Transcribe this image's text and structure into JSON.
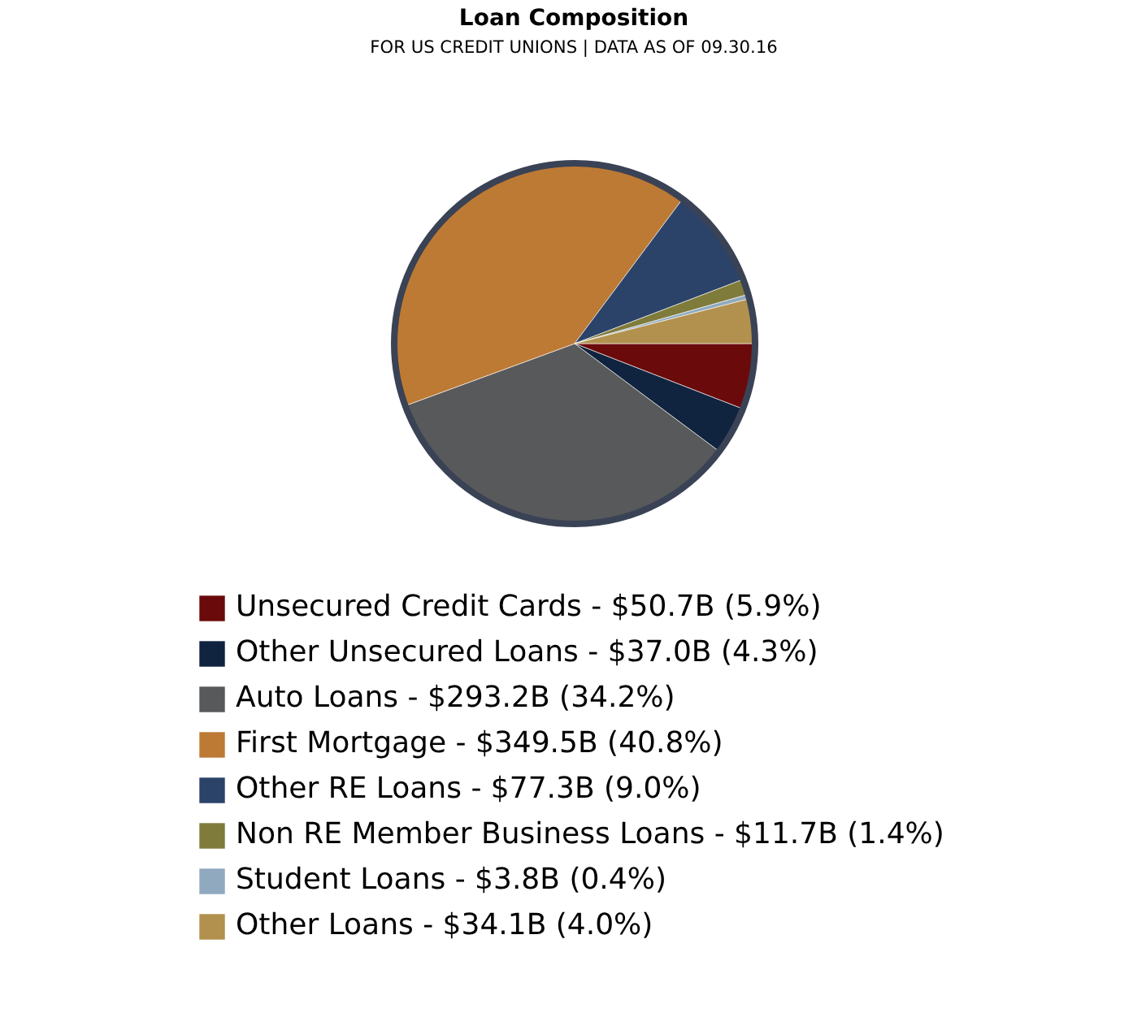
{
  "chart_data": {
    "type": "pie",
    "title": "Loan Composition",
    "subtitle": "FOR US CREDIT UNIONS | DATA AS OF 09.30.16",
    "categories": [
      "Unsecured Credit Cards",
      "Other Unsecured Loans",
      "Auto Loans",
      "First Mortgage",
      "Other RE Loans",
      "Non RE Member Business Loans",
      "Student Loans",
      "Other Loans"
    ],
    "values": [
      5.9,
      4.3,
      34.2,
      40.8,
      9.0,
      1.4,
      0.4,
      4.0
    ],
    "value_labels": [
      "$50.7B (5.9%)",
      "$37.0B (4.3%)",
      "$293.2B (34.2%)",
      "$349.5B (40.8%)",
      "$77.3B (9.0%)",
      "$11.7B (1.4%)",
      "$3.8B (0.4%)",
      "$34.1B (4.0%)"
    ],
    "colors": [
      "#6b0a0b",
      "#10233f",
      "#58595b",
      "#bd7a35",
      "#2b4368",
      "#7f7b3b",
      "#91a9bf",
      "#b2914e"
    ],
    "legend": "bottom"
  }
}
